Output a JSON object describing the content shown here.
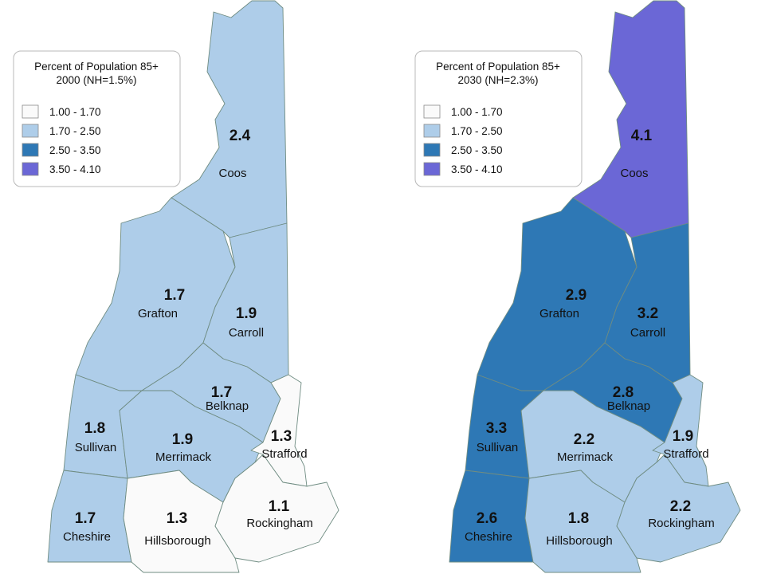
{
  "legend_classes": [
    {
      "label": "1.00 - 1.70",
      "min": 1.0,
      "max": 1.7,
      "color": "#fafafa"
    },
    {
      "label": "1.70 - 2.50",
      "min": 1.7,
      "max": 2.5,
      "color": "#aecde9"
    },
    {
      "label": "2.50 - 3.50",
      "min": 2.5,
      "max": 3.5,
      "color": "#2e78b5"
    },
    {
      "label": "3.50 - 4.10",
      "min": 3.5,
      "max": 4.1,
      "color": "#6b67d6"
    }
  ],
  "maps": [
    {
      "title_line1": "Percent of Population 85+",
      "title_line2": "2000 (NH=1.5%)",
      "counties": [
        {
          "name": "Coos",
          "value": "2.4",
          "class": 1
        },
        {
          "name": "Grafton",
          "value": "1.7",
          "class": 1
        },
        {
          "name": "Carroll",
          "value": "1.9",
          "class": 1
        },
        {
          "name": "Belknap",
          "value": "1.7",
          "class": 1
        },
        {
          "name": "Sullivan",
          "value": "1.8",
          "class": 1
        },
        {
          "name": "Merrimack",
          "value": "1.9",
          "class": 1
        },
        {
          "name": "Strafford",
          "value": "1.3",
          "class": 0
        },
        {
          "name": "Cheshire",
          "value": "1.7",
          "class": 1
        },
        {
          "name": "Hillsborough",
          "value": "1.3",
          "class": 0
        },
        {
          "name": "Rockingham",
          "value": "1.1",
          "class": 0
        }
      ]
    },
    {
      "title_line1": "Percent of Population 85+",
      "title_line2": "2030 (NH=2.3%)",
      "counties": [
        {
          "name": "Coos",
          "value": "4.1",
          "class": 3
        },
        {
          "name": "Grafton",
          "value": "2.9",
          "class": 2
        },
        {
          "name": "Carroll",
          "value": "3.2",
          "class": 2
        },
        {
          "name": "Belknap",
          "value": "2.8",
          "class": 2
        },
        {
          "name": "Sullivan",
          "value": "3.3",
          "class": 2
        },
        {
          "name": "Merrimack",
          "value": "2.2",
          "class": 1
        },
        {
          "name": "Strafford",
          "value": "1.9",
          "class": 1
        },
        {
          "name": "Cheshire",
          "value": "2.6",
          "class": 2
        },
        {
          "name": "Hillsborough",
          "value": "1.8",
          "class": 1
        },
        {
          "name": "Rockingham",
          "value": "2.2",
          "class": 1
        }
      ]
    }
  ]
}
